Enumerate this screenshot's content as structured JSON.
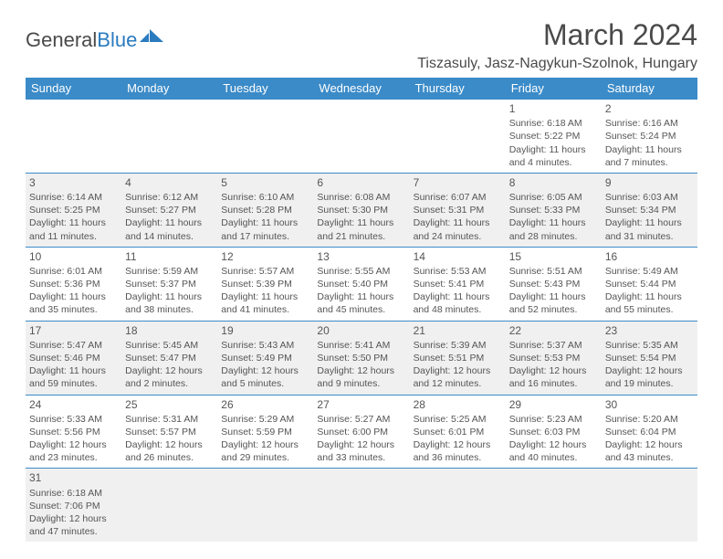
{
  "logo": {
    "part1": "General",
    "part2": "Blue"
  },
  "title": "March 2024",
  "location": "Tiszasuly, Jasz-Nagykun-Szolnok, Hungary",
  "colors": {
    "header_bg": "#3b8bc8",
    "header_text": "#ffffff",
    "border": "#3b8bc8",
    "alt_row": "#f0f0f0",
    "text": "#555555",
    "title_text": "#4a4a4a"
  },
  "fonts": {
    "title_size": 32,
    "location_size": 16,
    "weekday_size": 13,
    "cell_size": 10.5,
    "daynum_size": 12
  },
  "weekdays": [
    "Sunday",
    "Monday",
    "Tuesday",
    "Wednesday",
    "Thursday",
    "Friday",
    "Saturday"
  ],
  "weeks": [
    [
      null,
      null,
      null,
      null,
      null,
      {
        "d": "1",
        "sr": "Sunrise: 6:18 AM",
        "ss": "Sunset: 5:22 PM",
        "dl1": "Daylight: 11 hours",
        "dl2": "and 4 minutes."
      },
      {
        "d": "2",
        "sr": "Sunrise: 6:16 AM",
        "ss": "Sunset: 5:24 PM",
        "dl1": "Daylight: 11 hours",
        "dl2": "and 7 minutes."
      }
    ],
    [
      {
        "d": "3",
        "sr": "Sunrise: 6:14 AM",
        "ss": "Sunset: 5:25 PM",
        "dl1": "Daylight: 11 hours",
        "dl2": "and 11 minutes."
      },
      {
        "d": "4",
        "sr": "Sunrise: 6:12 AM",
        "ss": "Sunset: 5:27 PM",
        "dl1": "Daylight: 11 hours",
        "dl2": "and 14 minutes."
      },
      {
        "d": "5",
        "sr": "Sunrise: 6:10 AM",
        "ss": "Sunset: 5:28 PM",
        "dl1": "Daylight: 11 hours",
        "dl2": "and 17 minutes."
      },
      {
        "d": "6",
        "sr": "Sunrise: 6:08 AM",
        "ss": "Sunset: 5:30 PM",
        "dl1": "Daylight: 11 hours",
        "dl2": "and 21 minutes."
      },
      {
        "d": "7",
        "sr": "Sunrise: 6:07 AM",
        "ss": "Sunset: 5:31 PM",
        "dl1": "Daylight: 11 hours",
        "dl2": "and 24 minutes."
      },
      {
        "d": "8",
        "sr": "Sunrise: 6:05 AM",
        "ss": "Sunset: 5:33 PM",
        "dl1": "Daylight: 11 hours",
        "dl2": "and 28 minutes."
      },
      {
        "d": "9",
        "sr": "Sunrise: 6:03 AM",
        "ss": "Sunset: 5:34 PM",
        "dl1": "Daylight: 11 hours",
        "dl2": "and 31 minutes."
      }
    ],
    [
      {
        "d": "10",
        "sr": "Sunrise: 6:01 AM",
        "ss": "Sunset: 5:36 PM",
        "dl1": "Daylight: 11 hours",
        "dl2": "and 35 minutes."
      },
      {
        "d": "11",
        "sr": "Sunrise: 5:59 AM",
        "ss": "Sunset: 5:37 PM",
        "dl1": "Daylight: 11 hours",
        "dl2": "and 38 minutes."
      },
      {
        "d": "12",
        "sr": "Sunrise: 5:57 AM",
        "ss": "Sunset: 5:39 PM",
        "dl1": "Daylight: 11 hours",
        "dl2": "and 41 minutes."
      },
      {
        "d": "13",
        "sr": "Sunrise: 5:55 AM",
        "ss": "Sunset: 5:40 PM",
        "dl1": "Daylight: 11 hours",
        "dl2": "and 45 minutes."
      },
      {
        "d": "14",
        "sr": "Sunrise: 5:53 AM",
        "ss": "Sunset: 5:41 PM",
        "dl1": "Daylight: 11 hours",
        "dl2": "and 48 minutes."
      },
      {
        "d": "15",
        "sr": "Sunrise: 5:51 AM",
        "ss": "Sunset: 5:43 PM",
        "dl1": "Daylight: 11 hours",
        "dl2": "and 52 minutes."
      },
      {
        "d": "16",
        "sr": "Sunrise: 5:49 AM",
        "ss": "Sunset: 5:44 PM",
        "dl1": "Daylight: 11 hours",
        "dl2": "and 55 minutes."
      }
    ],
    [
      {
        "d": "17",
        "sr": "Sunrise: 5:47 AM",
        "ss": "Sunset: 5:46 PM",
        "dl1": "Daylight: 11 hours",
        "dl2": "and 59 minutes."
      },
      {
        "d": "18",
        "sr": "Sunrise: 5:45 AM",
        "ss": "Sunset: 5:47 PM",
        "dl1": "Daylight: 12 hours",
        "dl2": "and 2 minutes."
      },
      {
        "d": "19",
        "sr": "Sunrise: 5:43 AM",
        "ss": "Sunset: 5:49 PM",
        "dl1": "Daylight: 12 hours",
        "dl2": "and 5 minutes."
      },
      {
        "d": "20",
        "sr": "Sunrise: 5:41 AM",
        "ss": "Sunset: 5:50 PM",
        "dl1": "Daylight: 12 hours",
        "dl2": "and 9 minutes."
      },
      {
        "d": "21",
        "sr": "Sunrise: 5:39 AM",
        "ss": "Sunset: 5:51 PM",
        "dl1": "Daylight: 12 hours",
        "dl2": "and 12 minutes."
      },
      {
        "d": "22",
        "sr": "Sunrise: 5:37 AM",
        "ss": "Sunset: 5:53 PM",
        "dl1": "Daylight: 12 hours",
        "dl2": "and 16 minutes."
      },
      {
        "d": "23",
        "sr": "Sunrise: 5:35 AM",
        "ss": "Sunset: 5:54 PM",
        "dl1": "Daylight: 12 hours",
        "dl2": "and 19 minutes."
      }
    ],
    [
      {
        "d": "24",
        "sr": "Sunrise: 5:33 AM",
        "ss": "Sunset: 5:56 PM",
        "dl1": "Daylight: 12 hours",
        "dl2": "and 23 minutes."
      },
      {
        "d": "25",
        "sr": "Sunrise: 5:31 AM",
        "ss": "Sunset: 5:57 PM",
        "dl1": "Daylight: 12 hours",
        "dl2": "and 26 minutes."
      },
      {
        "d": "26",
        "sr": "Sunrise: 5:29 AM",
        "ss": "Sunset: 5:59 PM",
        "dl1": "Daylight: 12 hours",
        "dl2": "and 29 minutes."
      },
      {
        "d": "27",
        "sr": "Sunrise: 5:27 AM",
        "ss": "Sunset: 6:00 PM",
        "dl1": "Daylight: 12 hours",
        "dl2": "and 33 minutes."
      },
      {
        "d": "28",
        "sr": "Sunrise: 5:25 AM",
        "ss": "Sunset: 6:01 PM",
        "dl1": "Daylight: 12 hours",
        "dl2": "and 36 minutes."
      },
      {
        "d": "29",
        "sr": "Sunrise: 5:23 AM",
        "ss": "Sunset: 6:03 PM",
        "dl1": "Daylight: 12 hours",
        "dl2": "and 40 minutes."
      },
      {
        "d": "30",
        "sr": "Sunrise: 5:20 AM",
        "ss": "Sunset: 6:04 PM",
        "dl1": "Daylight: 12 hours",
        "dl2": "and 43 minutes."
      }
    ],
    [
      {
        "d": "31",
        "sr": "Sunrise: 6:18 AM",
        "ss": "Sunset: 7:06 PM",
        "dl1": "Daylight: 12 hours",
        "dl2": "and 47 minutes."
      },
      null,
      null,
      null,
      null,
      null,
      null
    ]
  ]
}
